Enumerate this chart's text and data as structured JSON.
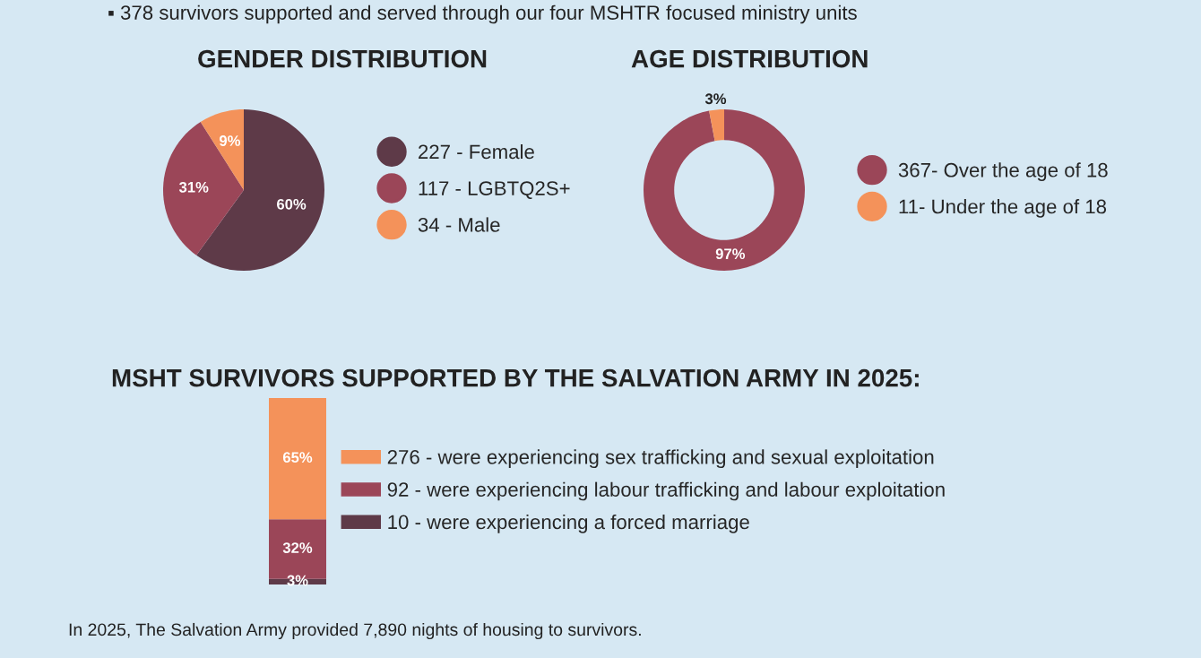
{
  "chart_data": [
    {
      "type": "pie",
      "title": "GENDER DISTRIBUTION",
      "annotations": [
        "▪ 378 survivors supported and served through our four MSHTR focused ministry units"
      ],
      "categories": [
        "227 - Female",
        "117 - LGBTQ2S+",
        "34 - Male"
      ],
      "values": [
        60,
        31,
        9
      ],
      "value_labels": [
        "60%",
        "31%",
        "9%"
      ],
      "colors": [
        "#5e3a48",
        "#9b4658",
        "#f4925a"
      ],
      "legend": "right"
    },
    {
      "type": "donut",
      "title": "AGE DISTRIBUTION",
      "categories": [
        "367- Over the age of 18",
        "11- Under the age of 18"
      ],
      "values": [
        97,
        3
      ],
      "value_labels": [
        "97%",
        "3%"
      ],
      "colors": [
        "#9b4658",
        "#f4925a"
      ],
      "legend": "right"
    },
    {
      "type": "bar",
      "stacked": true,
      "title": "MSHT SURVIVORS SUPPORTED BY THE SALVATION ARMY IN 2025:",
      "annotations": [
        "In 2025, The Salvation Army provided 7,890 nights of housing to survivors."
      ],
      "categories": [
        null
      ],
      "legend": "right",
      "series": [
        {
          "name": "10 - were experiencing a forced marriage",
          "color": "#5e3a48",
          "values": [
            3
          ],
          "value_labels": [
            "3%"
          ]
        },
        {
          "name": "92 - were experiencing labour trafficking and labour exploitation",
          "color": "#9b4658",
          "values": [
            32
          ],
          "value_labels": [
            "32%"
          ]
        },
        {
          "name": "276 - were experiencing sex trafficking and sexual exploitation",
          "color": "#f4925a",
          "values": [
            65
          ],
          "value_labels": [
            "65%"
          ]
        }
      ]
    }
  ]
}
